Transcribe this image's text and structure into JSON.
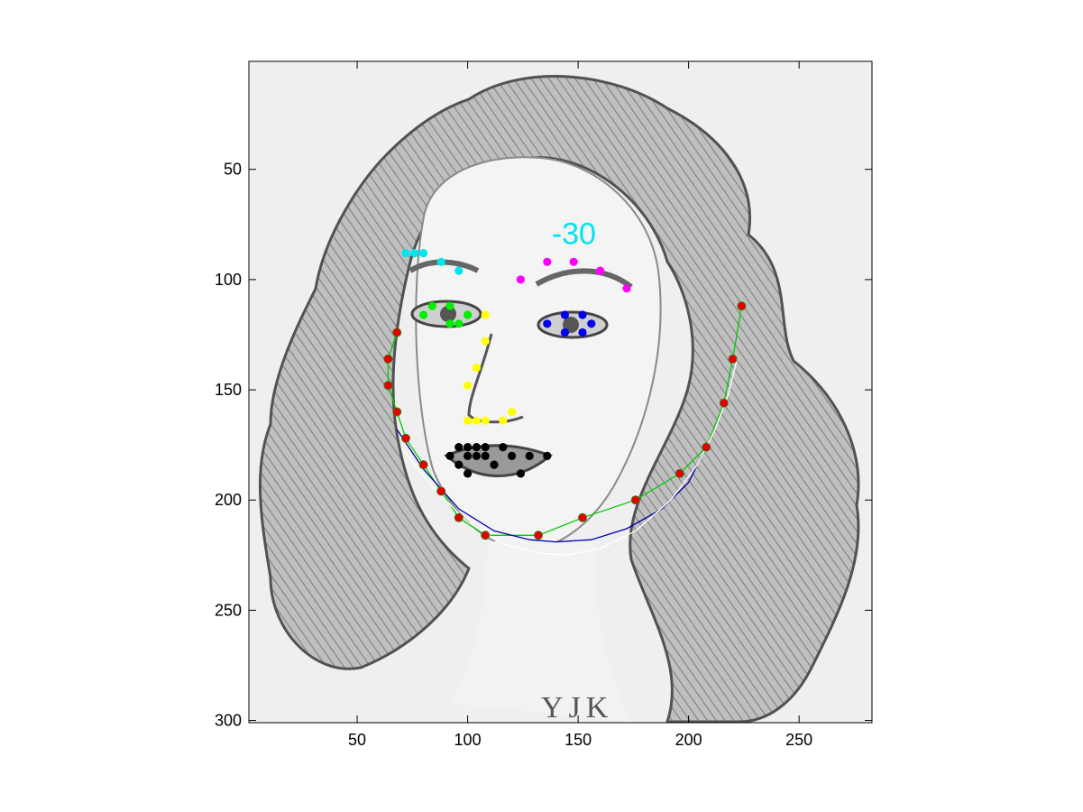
{
  "chart_data": {
    "type": "scatter",
    "title": "",
    "xlabel": "",
    "ylabel": "",
    "xlim": [
      1,
      283
    ],
    "ylim": [
      301,
      1
    ],
    "y_reversed": true,
    "grid": false,
    "background_image": "pencil-sketch-portrait-of-woman-with-curly-hair",
    "xticks": [
      50,
      100,
      150,
      200,
      250
    ],
    "yticks": [
      50,
      100,
      150,
      200,
      250,
      300
    ],
    "xtick_labels": [
      "50",
      "100",
      "150",
      "200",
      "250"
    ],
    "ytick_labels": [
      "50",
      "100",
      "150",
      "200",
      "250",
      "300"
    ],
    "signature_text": "YJK",
    "annotation": {
      "text": "-30",
      "x": 147,
      "y": 79,
      "color": "#00e5ee"
    },
    "series": [
      {
        "kind": "points",
        "color": "#00e5ee",
        "points": [
          [
            72,
            88
          ],
          [
            76,
            88
          ],
          [
            80,
            88
          ],
          [
            88,
            92
          ],
          [
            96,
            96
          ]
        ]
      },
      {
        "kind": "points",
        "color": "#ff00ff",
        "points": [
          [
            124,
            100
          ],
          [
            136,
            92
          ],
          [
            148,
            92
          ],
          [
            160,
            96
          ],
          [
            172,
            104
          ]
        ]
      },
      {
        "kind": "points",
        "color": "#00ee00",
        "points": [
          [
            80,
            116
          ],
          [
            84,
            112
          ],
          [
            92,
            112
          ],
          [
            96,
            120
          ],
          [
            100,
            116
          ],
          [
            92,
            120
          ]
        ]
      },
      {
        "kind": "points",
        "color": "#0000ee",
        "points": [
          [
            136,
            120
          ],
          [
            144,
            116
          ],
          [
            152,
            116
          ],
          [
            156,
            120
          ],
          [
            152,
            124
          ],
          [
            144,
            124
          ]
        ]
      },
      {
        "kind": "points",
        "color": "#ffff00",
        "points": [
          [
            108,
            116
          ],
          [
            108,
            128
          ],
          [
            104,
            140
          ],
          [
            100,
            148
          ],
          [
            100,
            164
          ],
          [
            104,
            164
          ],
          [
            108,
            164
          ],
          [
            116,
            164
          ],
          [
            120,
            160
          ]
        ]
      },
      {
        "kind": "points",
        "color": "#000000",
        "points": [
          [
            92,
            180
          ],
          [
            96,
            176
          ],
          [
            100,
            176
          ],
          [
            104,
            176
          ],
          [
            108,
            176
          ],
          [
            96,
            184
          ],
          [
            100,
            188
          ],
          [
            100,
            180
          ],
          [
            104,
            180
          ],
          [
            108,
            180
          ],
          [
            116,
            176
          ],
          [
            112,
            184
          ],
          [
            120,
            180
          ],
          [
            128,
            180
          ],
          [
            124,
            188
          ],
          [
            136,
            180
          ]
        ]
      },
      {
        "kind": "points",
        "color": "#e60000",
        "points": [
          [
            68,
            124
          ],
          [
            64,
            136
          ],
          [
            64,
            148
          ],
          [
            68,
            160
          ],
          [
            72,
            172
          ],
          [
            80,
            184
          ],
          [
            88,
            196
          ],
          [
            96,
            208
          ],
          [
            108,
            216
          ],
          [
            132,
            216
          ],
          [
            152,
            208
          ],
          [
            176,
            200
          ],
          [
            196,
            188
          ],
          [
            208,
            176
          ],
          [
            216,
            156
          ],
          [
            220,
            136
          ],
          [
            224,
            112
          ]
        ]
      },
      {
        "kind": "line",
        "color": "#00cc00",
        "points": [
          [
            68,
            124
          ],
          [
            64,
            136
          ],
          [
            64,
            148
          ],
          [
            68,
            160
          ],
          [
            72,
            172
          ],
          [
            80,
            184
          ],
          [
            88,
            196
          ],
          [
            96,
            208
          ],
          [
            108,
            216
          ],
          [
            132,
            216
          ],
          [
            152,
            208
          ],
          [
            176,
            200
          ],
          [
            196,
            188
          ],
          [
            208,
            176
          ],
          [
            216,
            156
          ],
          [
            220,
            136
          ],
          [
            224,
            112
          ]
        ]
      },
      {
        "kind": "line",
        "color": "#0000aa",
        "points": [
          [
            68,
            168
          ],
          [
            80,
            186
          ],
          [
            96,
            204
          ],
          [
            112,
            214
          ],
          [
            128,
            218
          ],
          [
            140,
            219
          ],
          [
            156,
            218
          ],
          [
            172,
            213
          ],
          [
            188,
            204
          ],
          [
            200,
            192
          ],
          [
            208,
            176
          ]
        ]
      },
      {
        "kind": "line",
        "color": "#ffffff",
        "points": [
          [
            70,
            176
          ],
          [
            84,
            194
          ],
          [
            100,
            210
          ],
          [
            116,
            220
          ],
          [
            132,
            224
          ],
          [
            144,
            225
          ],
          [
            160,
            222
          ],
          [
            176,
            214
          ],
          [
            192,
            200
          ],
          [
            204,
            184
          ],
          [
            212,
            168
          ],
          [
            218,
            152
          ],
          [
            222,
            136
          ]
        ]
      }
    ]
  }
}
